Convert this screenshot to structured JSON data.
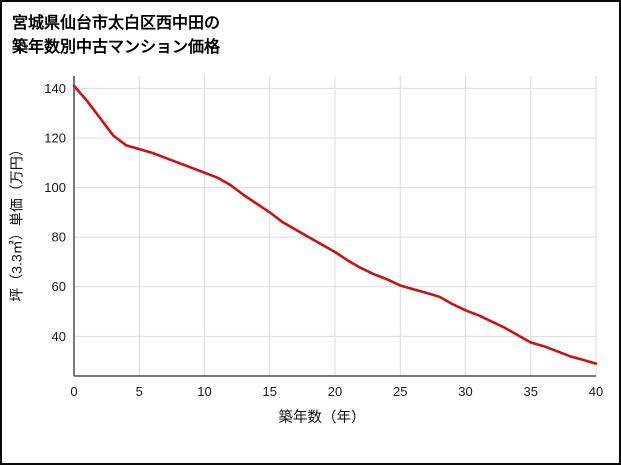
{
  "header": {
    "title_line1": "宮城県仙台市太白区西中田の",
    "title_line2": "築年数別中古マンション価格"
  },
  "chart_data": {
    "type": "line",
    "title": "宮城県仙台市太白区西中田の築年数別中古マンション価格",
    "xlabel": "築年数（年）",
    "ylabel": "坪（3.3㎡）単価（万円）",
    "x": [
      0,
      1,
      2,
      3,
      4,
      5,
      6,
      7,
      8,
      9,
      10,
      11,
      12,
      13,
      14,
      15,
      16,
      17,
      18,
      19,
      20,
      21,
      22,
      23,
      24,
      25,
      26,
      27,
      28,
      29,
      30,
      31,
      32,
      33,
      34,
      35,
      36,
      37,
      38,
      39,
      40
    ],
    "values": [
      141,
      135,
      128,
      121,
      117,
      115.5,
      114,
      112,
      110,
      108,
      106,
      104,
      101,
      97,
      93.5,
      90,
      86,
      83,
      80,
      77,
      74,
      70.5,
      67.5,
      65,
      63,
      60.5,
      59,
      57.5,
      56,
      53,
      50.5,
      48.5,
      46,
      43.5,
      40.5,
      37.5,
      36,
      34,
      32,
      30.5,
      29
    ],
    "xlim": [
      0,
      40
    ],
    "ylim": [
      24,
      145
    ],
    "x_ticks": [
      0,
      5,
      10,
      15,
      20,
      25,
      30,
      35,
      40
    ],
    "y_ticks": [
      40,
      60,
      80,
      100,
      120,
      140
    ],
    "grid": true,
    "legend": "none",
    "colors": {
      "line": "#cc1111",
      "grid": "#dcdcdc",
      "axis": "#4d4d4d",
      "text": "#1a1a1a"
    }
  }
}
